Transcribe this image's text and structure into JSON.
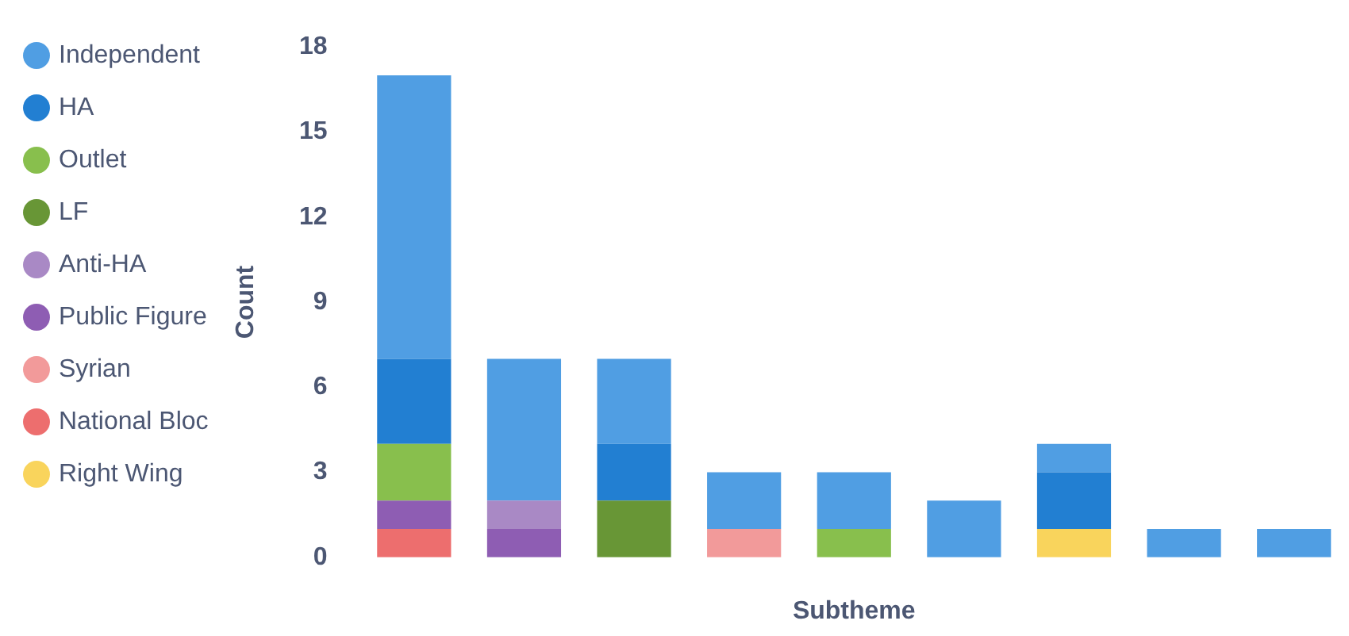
{
  "chart_data": {
    "type": "bar",
    "stacked": true,
    "xlabel": "Subtheme",
    "ylabel": "Count",
    "categories": [
      null,
      null,
      null,
      null,
      null,
      null,
      null,
      null,
      null
    ],
    "ylim": [
      0,
      18
    ],
    "yticks": [
      0,
      3,
      6,
      9,
      12,
      15,
      18
    ],
    "grid": false,
    "legend": "left",
    "series": [
      {
        "name": "Right Wing",
        "color": "#f9d45c",
        "values": [
          null,
          null,
          null,
          null,
          null,
          null,
          1,
          null,
          null
        ]
      },
      {
        "name": "National Bloc",
        "color": "#ed6e6e",
        "values": [
          1,
          null,
          null,
          null,
          null,
          null,
          null,
          null,
          null
        ]
      },
      {
        "name": "Syrian",
        "color": "#f29a9a",
        "values": [
          null,
          null,
          null,
          1,
          null,
          null,
          null,
          null,
          null
        ]
      },
      {
        "name": "Public Figure",
        "color": "#8e5db3",
        "values": [
          1,
          1,
          null,
          null,
          null,
          null,
          null,
          null,
          null
        ]
      },
      {
        "name": "Anti-HA",
        "color": "#a989c5",
        "values": [
          null,
          1,
          null,
          null,
          null,
          null,
          null,
          null,
          null
        ]
      },
      {
        "name": "LF",
        "color": "#689636",
        "values": [
          null,
          null,
          2,
          null,
          null,
          null,
          null,
          null,
          null
        ]
      },
      {
        "name": "Outlet",
        "color": "#88bf4d",
        "values": [
          2,
          null,
          null,
          null,
          1,
          null,
          null,
          null,
          null
        ]
      },
      {
        "name": "HA",
        "color": "#227fd2",
        "values": [
          3,
          null,
          2,
          null,
          null,
          null,
          2,
          null,
          null
        ]
      },
      {
        "name": "Independent",
        "color": "#509ee3",
        "values": [
          10,
          5,
          3,
          2,
          2,
          2,
          1,
          1,
          1
        ]
      }
    ]
  }
}
